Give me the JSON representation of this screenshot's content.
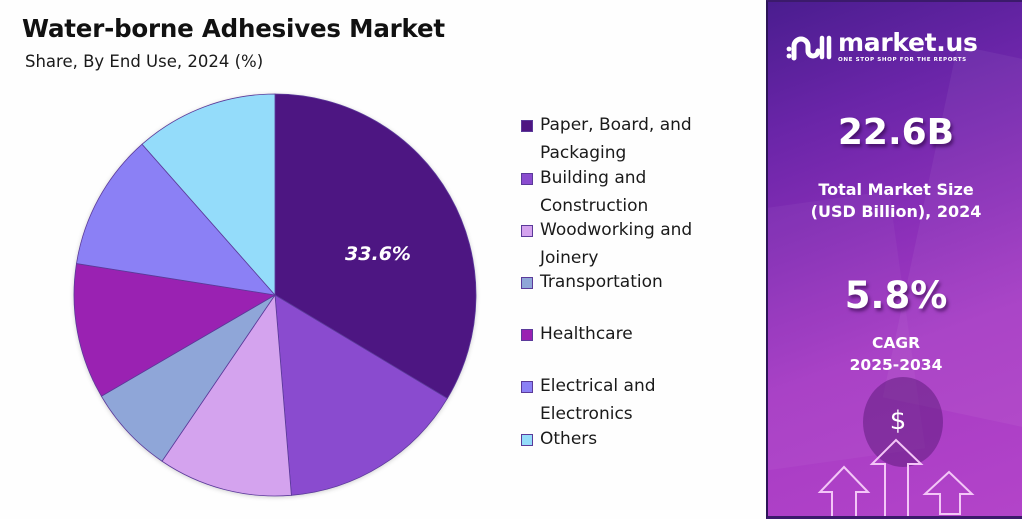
{
  "header": {
    "title": "Water-borne Adhesives Market",
    "subtitle": "Share, By End Use, 2024 (%)"
  },
  "brand": {
    "logo_icon": "market-us-logo-icon",
    "name": "market.us",
    "tagline": "ONE STOP SHOP FOR THE REPORTS"
  },
  "stats": {
    "market_size": {
      "value": "22.6B",
      "caption_line1": "Total Market Size",
      "caption_line2": "(USD Billion), 2024"
    },
    "cagr": {
      "value": "5.8%",
      "caption_line1": "CAGR",
      "caption_line2": "2025-2034"
    }
  },
  "decor": {
    "dollar_symbol": "$",
    "icon": "growth-arrows-icon"
  },
  "colors": {
    "border": "#3b1a6b",
    "panel_gradient_start": "#4a1d8f",
    "panel_gradient_end": "#b344c9",
    "text_dark": "#111111",
    "text_light": "#ffffff"
  },
  "legend": {
    "items": [
      {
        "label": "Paper, Board, and Packaging",
        "color": "#4e1582"
      },
      {
        "label": "Building and Construction",
        "color": "#8a4ccf"
      },
      {
        "label": "Woodworking and Joinery",
        "color": "#d4a3ee"
      },
      {
        "label": "Transportation",
        "color": "#8fa6d8"
      },
      {
        "label": "Healthcare",
        "color": "#9a22b2"
      },
      {
        "label": "Electrical and Electronics",
        "color": "#8b80f5"
      },
      {
        "label": "Others",
        "color": "#94dcfa"
      }
    ]
  },
  "chart_data": {
    "type": "pie",
    "title": "Water-borne Adhesives Market",
    "subtitle": "Share, By End Use, 2024 (%)",
    "categories": [
      "Paper, Board, and Packaging",
      "Building and Construction",
      "Woodworking and Joinery",
      "Transportation",
      "Healthcare",
      "Electrical and Electronics",
      "Others"
    ],
    "values": [
      33.6,
      15.1,
      10.8,
      7.1,
      10.9,
      11.0,
      11.5
    ],
    "colors": [
      "#4e1582",
      "#8a4ccf",
      "#d4a3ee",
      "#8fa6d8",
      "#9a22b2",
      "#8b80f5",
      "#94dcfa"
    ],
    "data_labels": [
      {
        "category": "Paper, Board, and Packaging",
        "text": "33.6%"
      }
    ],
    "start_angle_deg": 0,
    "direction": "clockwise",
    "legend_position": "right",
    "unit": "%"
  }
}
